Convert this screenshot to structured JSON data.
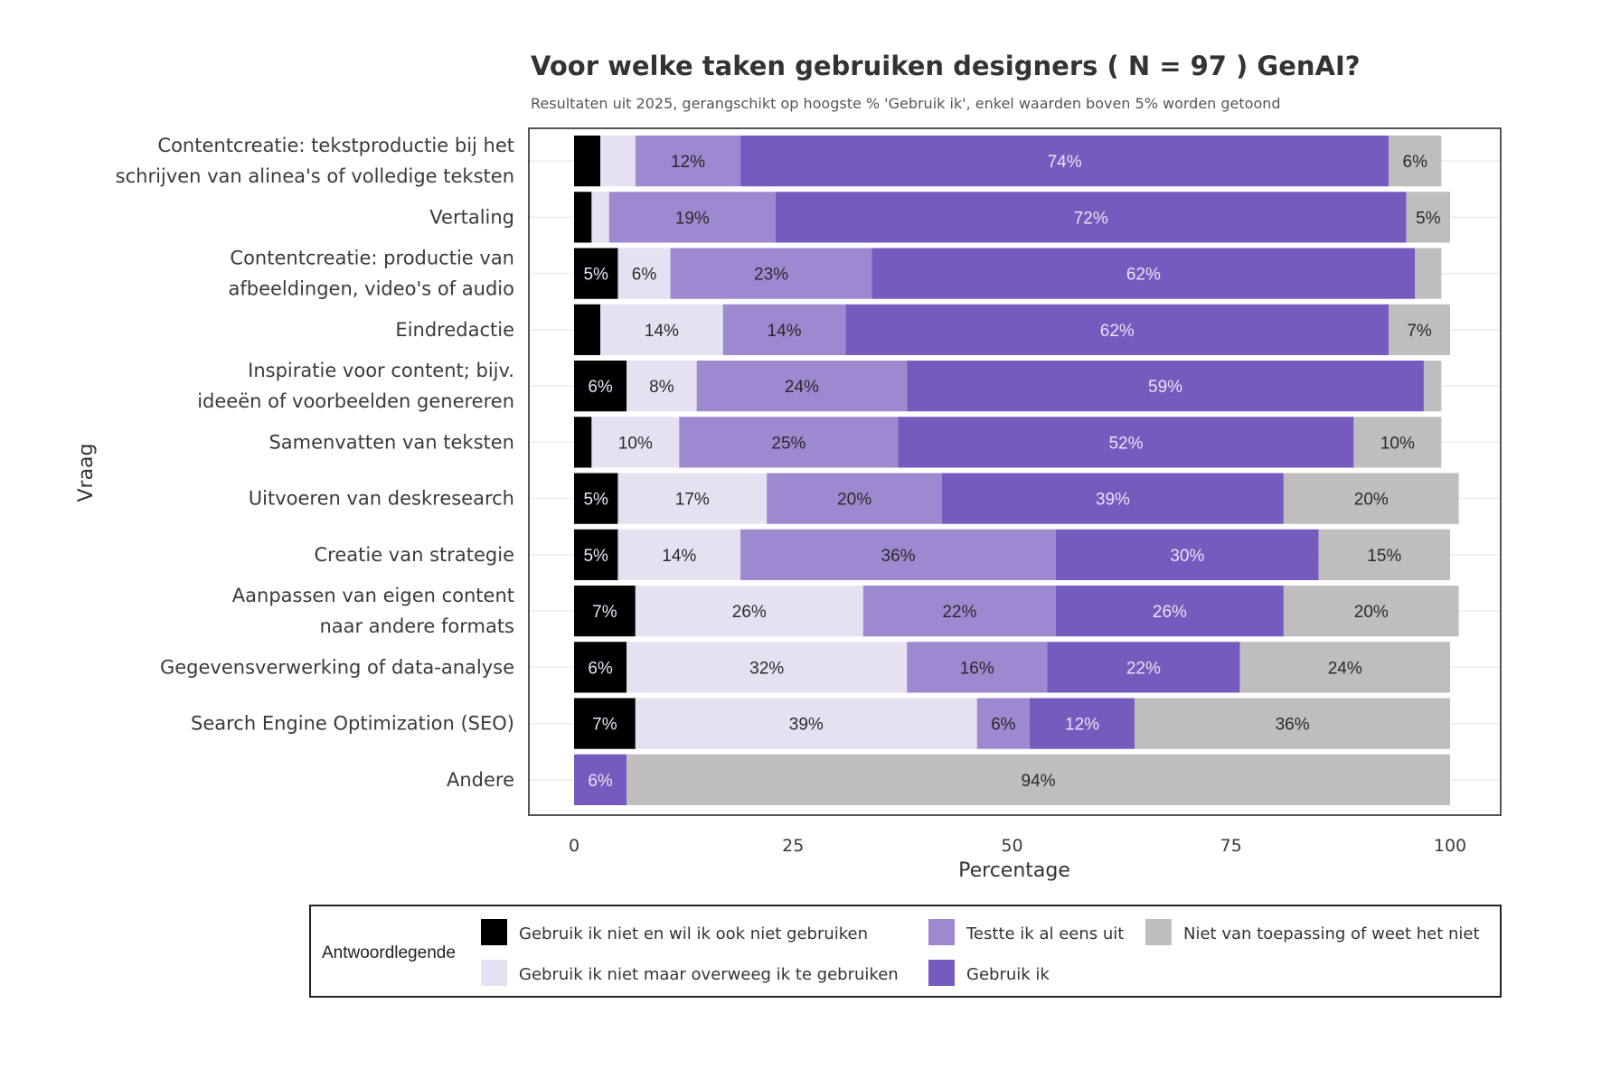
{
  "chart_data": {
    "type": "bar",
    "orientation": "horizontal",
    "stacked": true,
    "title": "Voor welke taken gebruiken designers ( N = 97 ) GenAI?",
    "subtitle": "Resultaten uit 2025, gerangschikt op hoogste % 'Gebruik ik', enkel waarden boven 5% worden getoond",
    "xlabel": "Percentage",
    "ylabel": "Vraag",
    "xlim": [
      0,
      100
    ],
    "xticks": [
      0,
      25,
      50,
      75,
      100
    ],
    "grid": true,
    "legend_position": "bottom",
    "label_threshold": 5,
    "categories": [
      [
        "Contentcreatie: tekstproductie bij het",
        "schrijven van alinea's of volledige teksten"
      ],
      [
        "Vertaling"
      ],
      [
        "Contentcreatie: productie van",
        "afbeeldingen, video's of audio"
      ],
      [
        "Eindredactie"
      ],
      [
        "Inspiratie voor content; bijv.",
        "ideeën of voorbeelden genereren"
      ],
      [
        "Samenvatten van teksten"
      ],
      [
        "Uitvoeren van deskresearch"
      ],
      [
        "Creatie van strategie"
      ],
      [
        "Aanpassen van eigen content",
        "naar andere formats"
      ],
      [
        "Gegevensverwerking of data-analyse"
      ],
      [
        "Search Engine Optimization (SEO)"
      ],
      [
        "Andere"
      ]
    ],
    "series": [
      {
        "name": "Gebruik ik niet en wil ik ook niet gebruiken",
        "color": "#000000",
        "label_color": "#e8e4f3",
        "values": [
          3,
          2,
          5,
          3,
          6,
          2,
          5,
          5,
          7,
          6,
          7,
          0
        ]
      },
      {
        "name": "Gebruik ik niet maar overweeg ik te gebruiken",
        "color": "#e6e1f2",
        "label_color": "#2a2a2a",
        "values": [
          4,
          2,
          6,
          14,
          8,
          10,
          17,
          14,
          26,
          32,
          39,
          0
        ]
      },
      {
        "name": "Testte ik al eens uit",
        "color": "#9e88d0",
        "label_color": "#2a2a2a",
        "values": [
          12,
          19,
          23,
          14,
          24,
          25,
          20,
          36,
          22,
          16,
          6,
          0
        ]
      },
      {
        "name": "Gebruik ik",
        "color": "#765bbf",
        "label_color": "#e8e4f3",
        "values": [
          74,
          72,
          62,
          62,
          59,
          52,
          39,
          30,
          26,
          22,
          12,
          6
        ]
      },
      {
        "name": "Niet van toepassing of weet het niet",
        "color": "#bebebe",
        "label_color": "#2a2a2a",
        "values": [
          6,
          5,
          3,
          7,
          2,
          10,
          20,
          15,
          20,
          24,
          36,
          94
        ]
      }
    ]
  },
  "legend": {
    "title": "Antwoordlegende",
    "layout_order": [
      0,
      2,
      4,
      1,
      3
    ]
  }
}
